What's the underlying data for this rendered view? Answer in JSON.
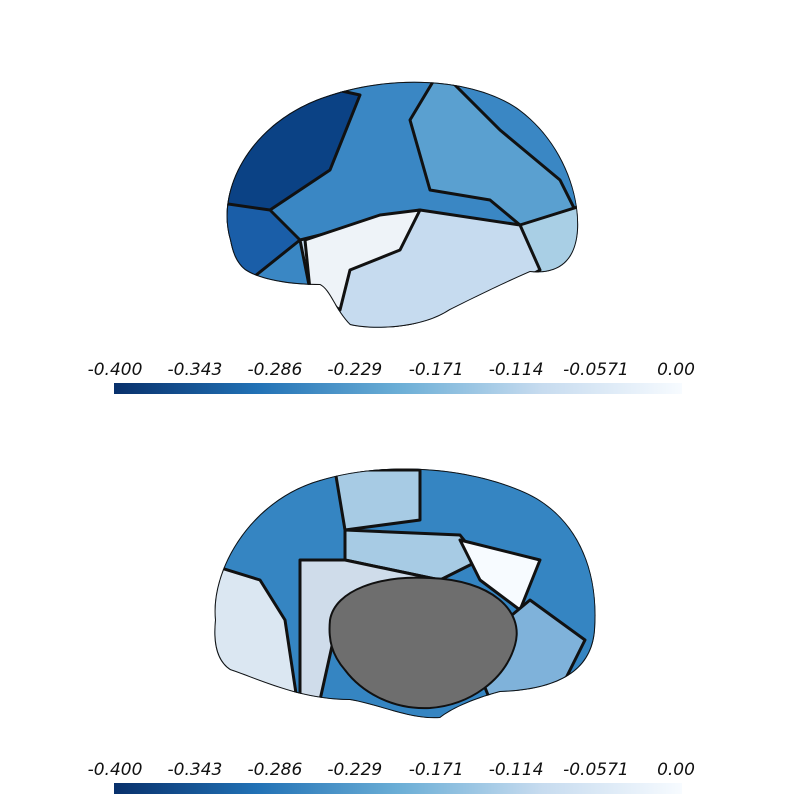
{
  "colorbars": [
    {
      "clim": [
        -0.4,
        0
      ],
      "ticks": [
        {
          "value": -0.4,
          "label": "-0.400"
        },
        -0.343,
        -0.286,
        -0.229,
        -0.171,
        -0.114,
        -0.0571,
        {
          "value": 0,
          "label": "0.00"
        }
      ]
    },
    {
      "clim": [
        -0.4,
        0
      ],
      "ticks": [
        {
          "value": -0.4,
          "label": "-0.400"
        },
        -0.343,
        -0.286,
        -0.229,
        -0.171,
        -0.114,
        -0.0571,
        {
          "value": 0,
          "label": "0.00"
        }
      ]
    }
  ]
}
